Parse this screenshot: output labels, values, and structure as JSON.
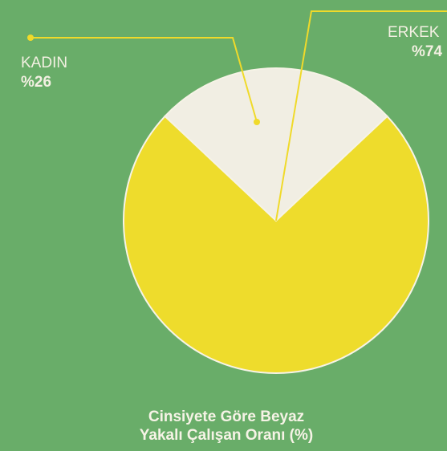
{
  "chart_data": {
    "type": "pie",
    "title": "Cinsiyete Göre Beyaz Yakalı Çalışan Oranı (%)",
    "categories": [
      "KADIN",
      "ERKEK"
    ],
    "values": [
      26,
      74
    ],
    "value_labels": [
      "%26",
      "%74"
    ],
    "colors": [
      "#f1eee3",
      "#eedc2c"
    ]
  }
}
